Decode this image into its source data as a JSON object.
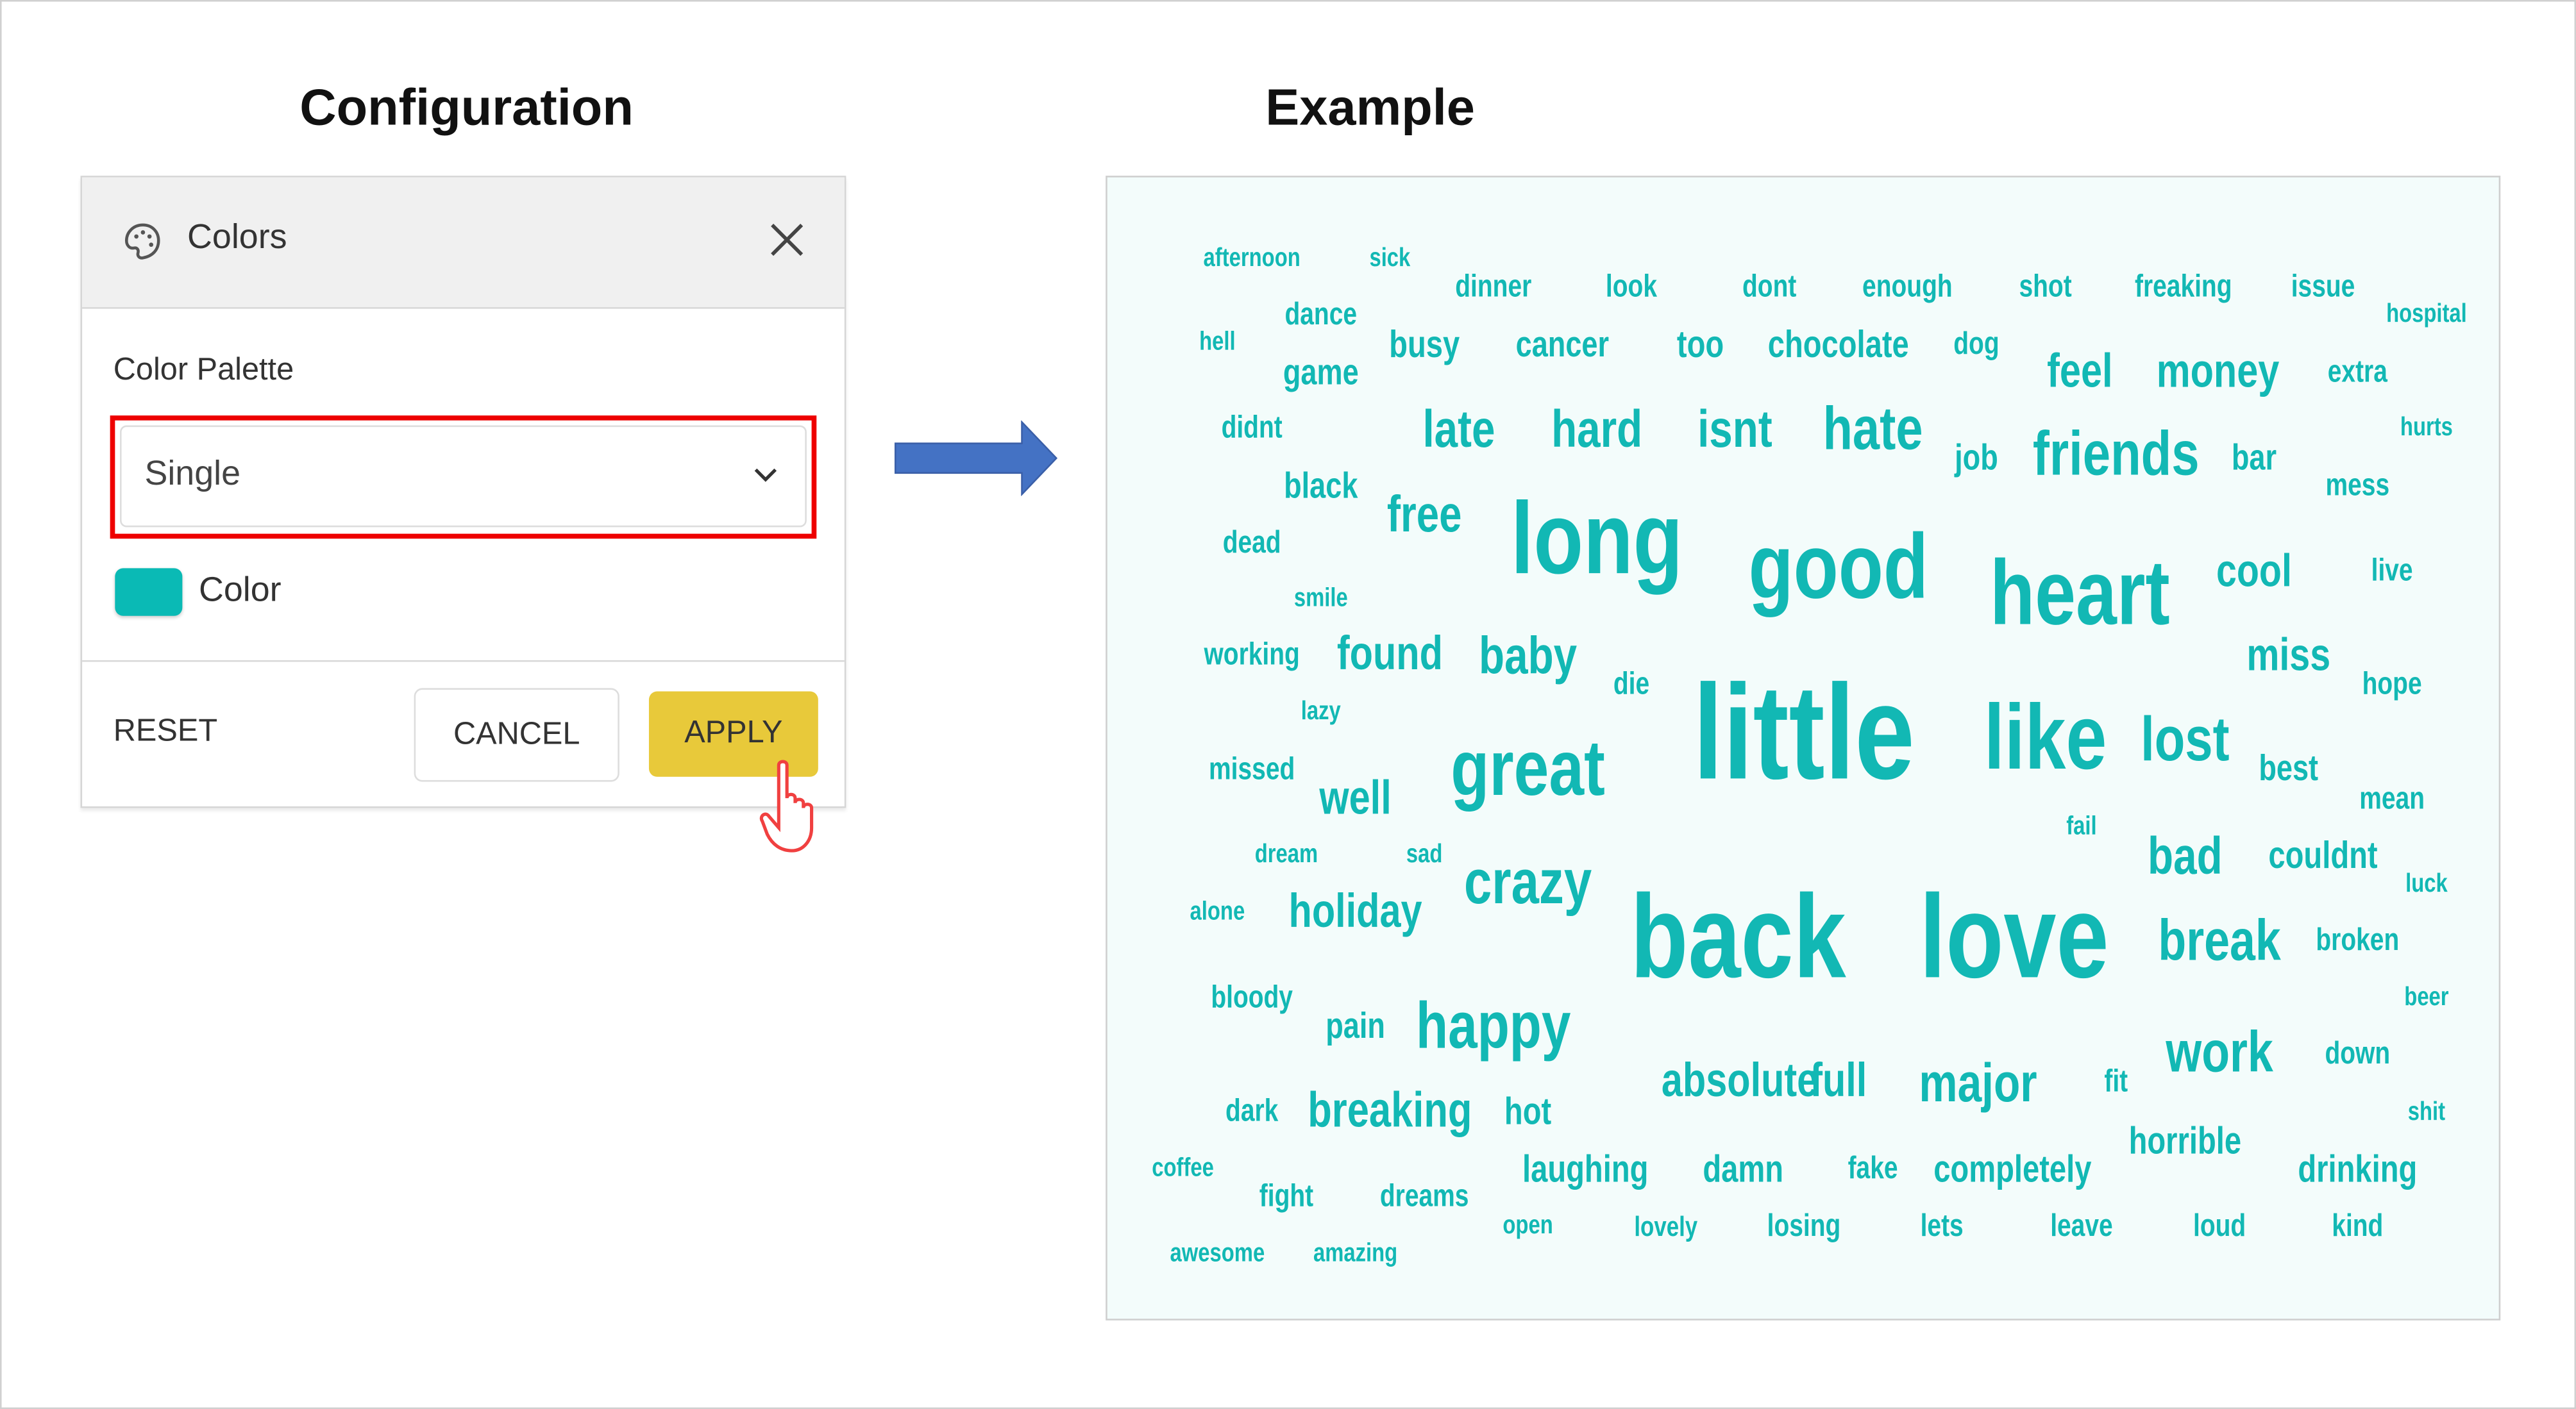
{
  "headings": {
    "configuration": "Configuration",
    "example": "Example"
  },
  "panel": {
    "title": "Colors",
    "icon": "palette-icon",
    "close_icon": "close-icon",
    "palette_label": "Color Palette",
    "palette_value": "Single",
    "color_label": "Color",
    "color_value": "#0abab5",
    "reset_label": "RESET",
    "cancel_label": "CANCEL",
    "apply_label": "APPLY",
    "highlight_color": "#ee0000",
    "apply_color": "#e8c93a"
  },
  "arrow": {
    "icon": "right-arrow-icon",
    "color": "#4472c4"
  },
  "cloud": {
    "color": "#12b8b4",
    "words": [
      "afternoon",
      "sick",
      "dinner",
      "look",
      "dont",
      "enough",
      "shot",
      "freaking",
      "issue",
      "hospital",
      "dance",
      "hell",
      "game",
      "busy",
      "cancer",
      "too",
      "chocolate",
      "dog",
      "feel",
      "money",
      "extra",
      "didnt",
      "late",
      "hard",
      "isnt",
      "hate",
      "job",
      "friends",
      "bar",
      "hurts",
      "black",
      "mess",
      "free",
      "long",
      "good",
      "heart",
      "cool",
      "dead",
      "live",
      "smile",
      "working",
      "found",
      "baby",
      "miss",
      "hope",
      "die",
      "lazy",
      "little",
      "like",
      "lost",
      "best",
      "great",
      "missed",
      "well",
      "mean",
      "fail",
      "dream",
      "sad",
      "bad",
      "couldnt",
      "crazy",
      "luck",
      "alone",
      "holiday",
      "back",
      "love",
      "break",
      "broken",
      "bloody",
      "beer",
      "pain",
      "happy",
      "work",
      "down",
      "absolute",
      "full",
      "major",
      "fit",
      "dark",
      "breaking",
      "hot",
      "shit",
      "horrible",
      "coffee",
      "laughing",
      "damn",
      "fake",
      "completely",
      "drinking",
      "fight",
      "dreams",
      "open",
      "lovely",
      "losing",
      "lets",
      "leave",
      "loud",
      "kind",
      "awesome",
      "amazing"
    ]
  }
}
